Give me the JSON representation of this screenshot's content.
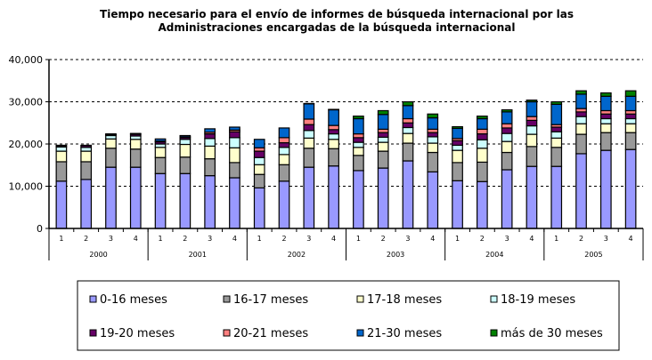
{
  "chart_data": {
    "type": "bar",
    "stacked": true,
    "title": "Tiempo necesario para el envío de informes de búsqueda internacional por las Administraciones encargadas de la búsqueda internacional",
    "title_lines": [
      "Tiempo necesario para el envío de informes de búsqueda internacional por las",
      "Administraciones encargadas de la búsqueda internacional"
    ],
    "xlabel": "",
    "ylabel": "",
    "ylim": [
      0,
      40000
    ],
    "yticks": [
      0,
      10000,
      20000,
      30000,
      40000
    ],
    "ytick_labels": [
      "0",
      "10,000",
      "20,000",
      "30,000",
      "40,000"
    ],
    "grid": "horizontal dashed",
    "legend_position": "bottom",
    "years": [
      "2000",
      "2001",
      "2002",
      "2003",
      "2004",
      "2005"
    ],
    "quarters": [
      "1",
      "2",
      "3",
      "4"
    ],
    "categories": [
      "2000-1",
      "2000-2",
      "2000-3",
      "2000-4",
      "2001-1",
      "2001-2",
      "2001-3",
      "2001-4",
      "2002-1",
      "2002-2",
      "2002-3",
      "2002-4",
      "2003-1",
      "2003-2",
      "2003-3",
      "2003-4",
      "2004-1",
      "2004-2",
      "2004-3",
      "2004-4",
      "2005-1",
      "2005-2",
      "2005-3",
      "2005-4"
    ],
    "series": [
      {
        "name": "0-16 meses",
        "color": "#9999FF",
        "values": [
          11200,
          11600,
          14500,
          14500,
          13000,
          13000,
          12500,
          12000,
          9600,
          11200,
          14500,
          14800,
          13700,
          14300,
          16000,
          13400,
          11300,
          11100,
          13900,
          14700,
          14700,
          17700,
          18500,
          18700
        ]
      },
      {
        "name": "16-17 meses",
        "color": "#999999",
        "values": [
          4600,
          4200,
          4500,
          4300,
          3800,
          3900,
          4000,
          3600,
          3200,
          3900,
          4500,
          4100,
          3600,
          4000,
          4200,
          4600,
          4300,
          4600,
          4100,
          4700,
          4500,
          4600,
          4200,
          4000
        ]
      },
      {
        "name": "17-18 meses",
        "color": "#FFFFCC",
        "values": [
          2500,
          2500,
          2200,
          2300,
          2400,
          3000,
          3000,
          3500,
          2300,
          2400,
          2400,
          2200,
          1900,
          2100,
          2300,
          2200,
          2900,
          3300,
          2600,
          2900,
          2200,
          2500,
          2100,
          2100
        ]
      },
      {
        "name": "18-19 meses",
        "color": "#CCFFFF",
        "values": [
          1000,
          900,
          800,
          800,
          800,
          1200,
          1800,
          2400,
          1700,
          1700,
          1800,
          1300,
          1200,
          1200,
          1400,
          1500,
          1200,
          2000,
          1900,
          2000,
          1500,
          1700,
          1200,
          1200
        ]
      },
      {
        "name": "19-20 meses",
        "color": "#660066",
        "values": [
          300,
          400,
          200,
          400,
          500,
          400,
          1100,
          1400,
          1500,
          1100,
          1400,
          1000,
          1100,
          1100,
          1100,
          1000,
          1100,
          1400,
          1300,
          1300,
          1100,
          1100,
          1100,
          1100
        ]
      },
      {
        "name": "20-21 meses",
        "color": "#FF8080",
        "values": [
          100,
          100,
          100,
          100,
          200,
          200,
          400,
          400,
          800,
          1200,
          1300,
          1000,
          900,
          800,
          1000,
          800,
          500,
          1100,
          1000,
          900,
          600,
          800,
          800,
          800
        ]
      },
      {
        "name": "21-30 meses",
        "color": "#0066CC",
        "values": [
          0,
          0,
          100,
          100,
          500,
          300,
          800,
          700,
          2000,
          2300,
          3600,
          3700,
          3600,
          3500,
          3100,
          2700,
          2400,
          2500,
          2800,
          3500,
          4800,
          3400,
          3400,
          3400
        ]
      },
      {
        "name": "más de 30 meses",
        "color": "#008000",
        "values": [
          0,
          0,
          0,
          0,
          0,
          0,
          0,
          0,
          0,
          0,
          100,
          100,
          600,
          900,
          900,
          900,
          400,
          600,
          500,
          400,
          600,
          800,
          800,
          1300
        ]
      }
    ]
  }
}
